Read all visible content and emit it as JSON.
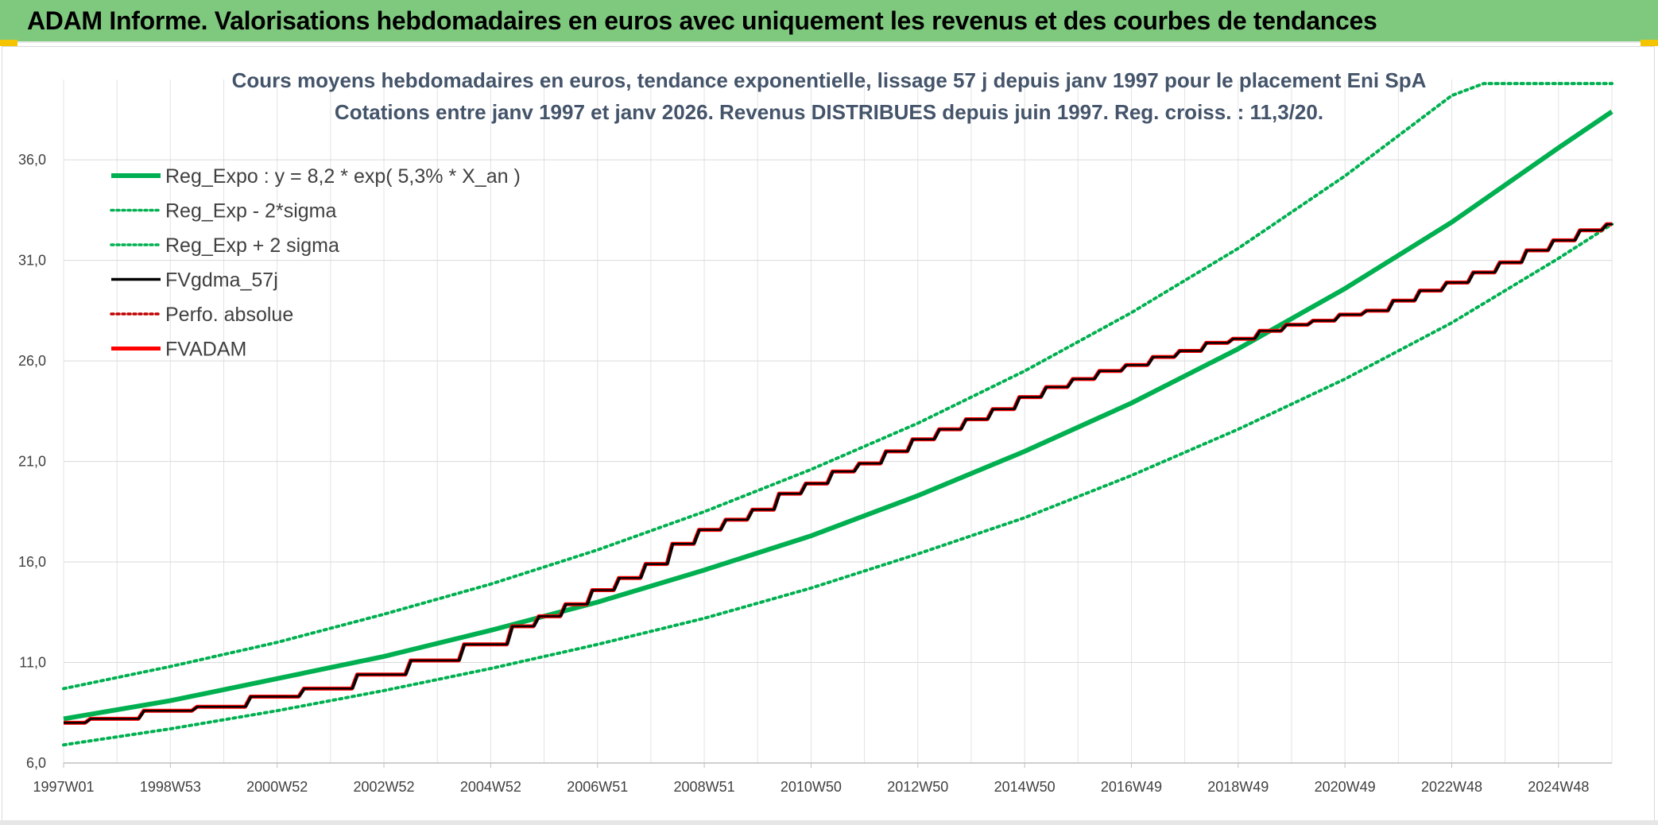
{
  "header": {
    "title": "ADAM Informe. Valorisations hebdomadaires en euros avec uniquement les revenus et des courbes de tendances"
  },
  "colors": {
    "header_bg": "#7fc97f",
    "reg_expo": "#00b050",
    "fvgdma": "#000000",
    "fvadam": "#ff0000",
    "perfo": "#c00000"
  },
  "chart_data": {
    "type": "line",
    "title": "Cours moyens hebdomadaires en euros, tendance exponentielle, lissage 57 j depuis janv 1997 pour le placement Eni SpA",
    "subtitle": "Cotations entre janv 1997 et janv 2026. Revenus DISTRIBUES depuis juin 1997. Reg. croiss. : 11,3/20.",
    "xlabel": "",
    "ylabel": "",
    "x_start": 1997.0,
    "x_end": 2026.0,
    "x_ticks": [
      {
        "x": 1997.0,
        "label": "1997W01"
      },
      {
        "x": 1999.0,
        "label": "1998W53"
      },
      {
        "x": 2001.0,
        "label": "2000W52"
      },
      {
        "x": 2003.0,
        "label": "2002W52"
      },
      {
        "x": 2005.0,
        "label": "2004W52"
      },
      {
        "x": 2007.0,
        "label": "2006W51"
      },
      {
        "x": 2009.0,
        "label": "2008W51"
      },
      {
        "x": 2011.0,
        "label": "2010W50"
      },
      {
        "x": 2013.0,
        "label": "2012W50"
      },
      {
        "x": 2015.0,
        "label": "2014W50"
      },
      {
        "x": 2017.0,
        "label": "2016W49"
      },
      {
        "x": 2019.0,
        "label": "2018W49"
      },
      {
        "x": 2021.0,
        "label": "2020W49"
      },
      {
        "x": 2023.0,
        "label": "2022W48"
      },
      {
        "x": 2025.0,
        "label": "2024W48"
      }
    ],
    "y_ticks": [
      {
        "y": 6.0,
        "label": "6,0"
      },
      {
        "y": 11.0,
        "label": "11,0"
      },
      {
        "y": 16.0,
        "label": "16,0"
      },
      {
        "y": 21.0,
        "label": "21,0"
      },
      {
        "y": 26.0,
        "label": "26,0"
      },
      {
        "y": 31.0,
        "label": "31,0"
      },
      {
        "y": 36.0,
        "label": "36,0"
      }
    ],
    "ylim": [
      6.0,
      40.0
    ],
    "grid": true,
    "legend_position": "top-left",
    "series": [
      {
        "name": "Reg_Expo : y = 8,2 * exp( 5,3% *  X_an )",
        "color": "#00b050",
        "style": "solid-thick",
        "points": [
          [
            1997.0,
            8.2
          ],
          [
            1999.0,
            9.1
          ],
          [
            2001.0,
            10.2
          ],
          [
            2003.0,
            11.3
          ],
          [
            2005.0,
            12.6
          ],
          [
            2007.0,
            14.0
          ],
          [
            2009.0,
            15.6
          ],
          [
            2011.0,
            17.3
          ],
          [
            2013.0,
            19.3
          ],
          [
            2015.0,
            21.5
          ],
          [
            2017.0,
            23.9
          ],
          [
            2019.0,
            26.6
          ],
          [
            2021.0,
            29.6
          ],
          [
            2023.0,
            32.9
          ],
          [
            2025.0,
            36.6
          ],
          [
            2026.0,
            38.4
          ]
        ]
      },
      {
        "name": "Reg_Exp - 2*sigma",
        "color": "#00b050",
        "style": "dotted",
        "points": [
          [
            1997.0,
            6.9
          ],
          [
            1999.0,
            7.7
          ],
          [
            2001.0,
            8.6
          ],
          [
            2003.0,
            9.6
          ],
          [
            2005.0,
            10.7
          ],
          [
            2007.0,
            11.9
          ],
          [
            2009.0,
            13.2
          ],
          [
            2011.0,
            14.7
          ],
          [
            2013.0,
            16.4
          ],
          [
            2015.0,
            18.2
          ],
          [
            2017.0,
            20.3
          ],
          [
            2019.0,
            22.6
          ],
          [
            2021.0,
            25.1
          ],
          [
            2023.0,
            27.9
          ],
          [
            2025.0,
            31.1
          ],
          [
            2026.0,
            32.8
          ]
        ]
      },
      {
        "name": "Reg_Exp + 2 sigma",
        "color": "#00b050",
        "style": "dotted",
        "points": [
          [
            1997.0,
            9.7
          ],
          [
            1999.0,
            10.8
          ],
          [
            2001.0,
            12.0
          ],
          [
            2003.0,
            13.4
          ],
          [
            2005.0,
            14.9
          ],
          [
            2007.0,
            16.6
          ],
          [
            2009.0,
            18.5
          ],
          [
            2011.0,
            20.6
          ],
          [
            2013.0,
            22.9
          ],
          [
            2015.0,
            25.5
          ],
          [
            2017.0,
            28.4
          ],
          [
            2019.0,
            31.6
          ],
          [
            2021.0,
            35.2
          ],
          [
            2023.0,
            39.2
          ],
          [
            2023.6,
            39.8
          ],
          [
            2026.0,
            39.8
          ]
        ]
      },
      {
        "name": "FVgdma_57j",
        "color": "#000000",
        "style": "solid",
        "points": [
          [
            1997.0,
            8.0
          ],
          [
            1997.4,
            8.0
          ],
          [
            1997.5,
            8.2
          ],
          [
            1998.4,
            8.2
          ],
          [
            1998.5,
            8.6
          ],
          [
            1999.4,
            8.6
          ],
          [
            1999.5,
            8.8
          ],
          [
            2000.4,
            8.8
          ],
          [
            2000.5,
            9.3
          ],
          [
            2001.4,
            9.3
          ],
          [
            2001.5,
            9.7
          ],
          [
            2002.4,
            9.7
          ],
          [
            2002.5,
            10.4
          ],
          [
            2003.4,
            10.4
          ],
          [
            2003.5,
            11.1
          ],
          [
            2004.4,
            11.1
          ],
          [
            2004.5,
            11.9
          ],
          [
            2005.3,
            11.9
          ],
          [
            2005.4,
            12.8
          ],
          [
            2005.8,
            12.8
          ],
          [
            2005.9,
            13.3
          ],
          [
            2006.3,
            13.3
          ],
          [
            2006.4,
            13.9
          ],
          [
            2006.8,
            13.9
          ],
          [
            2006.9,
            14.6
          ],
          [
            2007.3,
            14.6
          ],
          [
            2007.4,
            15.2
          ],
          [
            2007.8,
            15.2
          ],
          [
            2007.9,
            15.9
          ],
          [
            2008.3,
            15.9
          ],
          [
            2008.4,
            16.9
          ],
          [
            2008.8,
            16.9
          ],
          [
            2008.9,
            17.6
          ],
          [
            2009.3,
            17.6
          ],
          [
            2009.4,
            18.1
          ],
          [
            2009.8,
            18.1
          ],
          [
            2009.9,
            18.6
          ],
          [
            2010.3,
            18.6
          ],
          [
            2010.4,
            19.4
          ],
          [
            2010.8,
            19.4
          ],
          [
            2010.9,
            19.9
          ],
          [
            2011.3,
            19.9
          ],
          [
            2011.4,
            20.5
          ],
          [
            2011.8,
            20.5
          ],
          [
            2011.9,
            20.9
          ],
          [
            2012.3,
            20.9
          ],
          [
            2012.4,
            21.5
          ],
          [
            2012.8,
            21.5
          ],
          [
            2012.9,
            22.1
          ],
          [
            2013.3,
            22.1
          ],
          [
            2013.4,
            22.6
          ],
          [
            2013.8,
            22.6
          ],
          [
            2013.9,
            23.1
          ],
          [
            2014.3,
            23.1
          ],
          [
            2014.4,
            23.6
          ],
          [
            2014.8,
            23.6
          ],
          [
            2014.9,
            24.2
          ],
          [
            2015.3,
            24.2
          ],
          [
            2015.4,
            24.7
          ],
          [
            2015.8,
            24.7
          ],
          [
            2015.9,
            25.1
          ],
          [
            2016.3,
            25.1
          ],
          [
            2016.4,
            25.5
          ],
          [
            2016.8,
            25.5
          ],
          [
            2016.9,
            25.8
          ],
          [
            2017.3,
            25.8
          ],
          [
            2017.4,
            26.2
          ],
          [
            2017.8,
            26.2
          ],
          [
            2017.9,
            26.5
          ],
          [
            2018.3,
            26.5
          ],
          [
            2018.4,
            26.9
          ],
          [
            2018.8,
            26.9
          ],
          [
            2018.9,
            27.1
          ],
          [
            2019.3,
            27.1
          ],
          [
            2019.4,
            27.5
          ],
          [
            2019.8,
            27.5
          ],
          [
            2019.9,
            27.8
          ],
          [
            2020.3,
            27.8
          ],
          [
            2020.4,
            28.0
          ],
          [
            2020.8,
            28.0
          ],
          [
            2020.9,
            28.3
          ],
          [
            2021.3,
            28.3
          ],
          [
            2021.4,
            28.5
          ],
          [
            2021.8,
            28.5
          ],
          [
            2021.9,
            29.0
          ],
          [
            2022.3,
            29.0
          ],
          [
            2022.4,
            29.5
          ],
          [
            2022.8,
            29.5
          ],
          [
            2022.9,
            29.9
          ],
          [
            2023.3,
            29.9
          ],
          [
            2023.4,
            30.4
          ],
          [
            2023.8,
            30.4
          ],
          [
            2023.9,
            30.9
          ],
          [
            2024.3,
            30.9
          ],
          [
            2024.4,
            31.5
          ],
          [
            2024.8,
            31.5
          ],
          [
            2024.9,
            32.0
          ],
          [
            2025.3,
            32.0
          ],
          [
            2025.4,
            32.5
          ],
          [
            2025.8,
            32.5
          ],
          [
            2025.9,
            32.8
          ],
          [
            2026.0,
            32.8
          ]
        ]
      },
      {
        "name": "Perfo. absolue",
        "color": "#c00000",
        "style": "dotted",
        "points": []
      },
      {
        "name": "FVADAM",
        "color": "#ff0000",
        "style": "solid-thick",
        "points": [
          [
            1997.0,
            8.0
          ],
          [
            1997.4,
            8.0
          ],
          [
            1997.5,
            8.2
          ],
          [
            1998.4,
            8.2
          ],
          [
            1998.5,
            8.6
          ],
          [
            1999.4,
            8.6
          ],
          [
            1999.5,
            8.8
          ],
          [
            2000.4,
            8.8
          ],
          [
            2000.5,
            9.3
          ],
          [
            2001.4,
            9.3
          ],
          [
            2001.5,
            9.7
          ],
          [
            2002.4,
            9.7
          ],
          [
            2002.5,
            10.4
          ],
          [
            2003.4,
            10.4
          ],
          [
            2003.5,
            11.1
          ],
          [
            2004.4,
            11.1
          ],
          [
            2004.5,
            11.9
          ],
          [
            2005.3,
            11.9
          ],
          [
            2005.4,
            12.8
          ],
          [
            2005.8,
            12.8
          ],
          [
            2005.9,
            13.3
          ],
          [
            2006.3,
            13.3
          ],
          [
            2006.4,
            13.9
          ],
          [
            2006.8,
            13.9
          ],
          [
            2006.9,
            14.6
          ],
          [
            2007.3,
            14.6
          ],
          [
            2007.4,
            15.2
          ],
          [
            2007.8,
            15.2
          ],
          [
            2007.9,
            15.9
          ],
          [
            2008.3,
            15.9
          ],
          [
            2008.4,
            16.9
          ],
          [
            2008.8,
            16.9
          ],
          [
            2008.9,
            17.6
          ],
          [
            2009.3,
            17.6
          ],
          [
            2009.4,
            18.1
          ],
          [
            2009.8,
            18.1
          ],
          [
            2009.9,
            18.6
          ],
          [
            2010.3,
            18.6
          ],
          [
            2010.4,
            19.4
          ],
          [
            2010.8,
            19.4
          ],
          [
            2010.9,
            19.9
          ],
          [
            2011.3,
            19.9
          ],
          [
            2011.4,
            20.5
          ],
          [
            2011.8,
            20.5
          ],
          [
            2011.9,
            20.9
          ],
          [
            2012.3,
            20.9
          ],
          [
            2012.4,
            21.5
          ],
          [
            2012.8,
            21.5
          ],
          [
            2012.9,
            22.1
          ],
          [
            2013.3,
            22.1
          ],
          [
            2013.4,
            22.6
          ],
          [
            2013.8,
            22.6
          ],
          [
            2013.9,
            23.1
          ],
          [
            2014.3,
            23.1
          ],
          [
            2014.4,
            23.6
          ],
          [
            2014.8,
            23.6
          ],
          [
            2014.9,
            24.2
          ],
          [
            2015.3,
            24.2
          ],
          [
            2015.4,
            24.7
          ],
          [
            2015.8,
            24.7
          ],
          [
            2015.9,
            25.1
          ],
          [
            2016.3,
            25.1
          ],
          [
            2016.4,
            25.5
          ],
          [
            2016.8,
            25.5
          ],
          [
            2016.9,
            25.8
          ],
          [
            2017.3,
            25.8
          ],
          [
            2017.4,
            26.2
          ],
          [
            2017.8,
            26.2
          ],
          [
            2017.9,
            26.5
          ],
          [
            2018.3,
            26.5
          ],
          [
            2018.4,
            26.9
          ],
          [
            2018.8,
            26.9
          ],
          [
            2018.9,
            27.1
          ],
          [
            2019.3,
            27.1
          ],
          [
            2019.4,
            27.5
          ],
          [
            2019.8,
            27.5
          ],
          [
            2019.9,
            27.8
          ],
          [
            2020.3,
            27.8
          ],
          [
            2020.4,
            28.0
          ],
          [
            2020.8,
            28.0
          ],
          [
            2020.9,
            28.3
          ],
          [
            2021.3,
            28.3
          ],
          [
            2021.4,
            28.5
          ],
          [
            2021.8,
            28.5
          ],
          [
            2021.9,
            29.0
          ],
          [
            2022.3,
            29.0
          ],
          [
            2022.4,
            29.5
          ],
          [
            2022.8,
            29.5
          ],
          [
            2022.9,
            29.9
          ],
          [
            2023.3,
            29.9
          ],
          [
            2023.4,
            30.4
          ],
          [
            2023.8,
            30.4
          ],
          [
            2023.9,
            30.9
          ],
          [
            2024.3,
            30.9
          ],
          [
            2024.4,
            31.5
          ],
          [
            2024.8,
            31.5
          ],
          [
            2024.9,
            32.0
          ],
          [
            2025.3,
            32.0
          ],
          [
            2025.4,
            32.5
          ],
          [
            2025.8,
            32.5
          ],
          [
            2025.9,
            32.8
          ],
          [
            2026.0,
            32.8
          ]
        ]
      }
    ]
  }
}
